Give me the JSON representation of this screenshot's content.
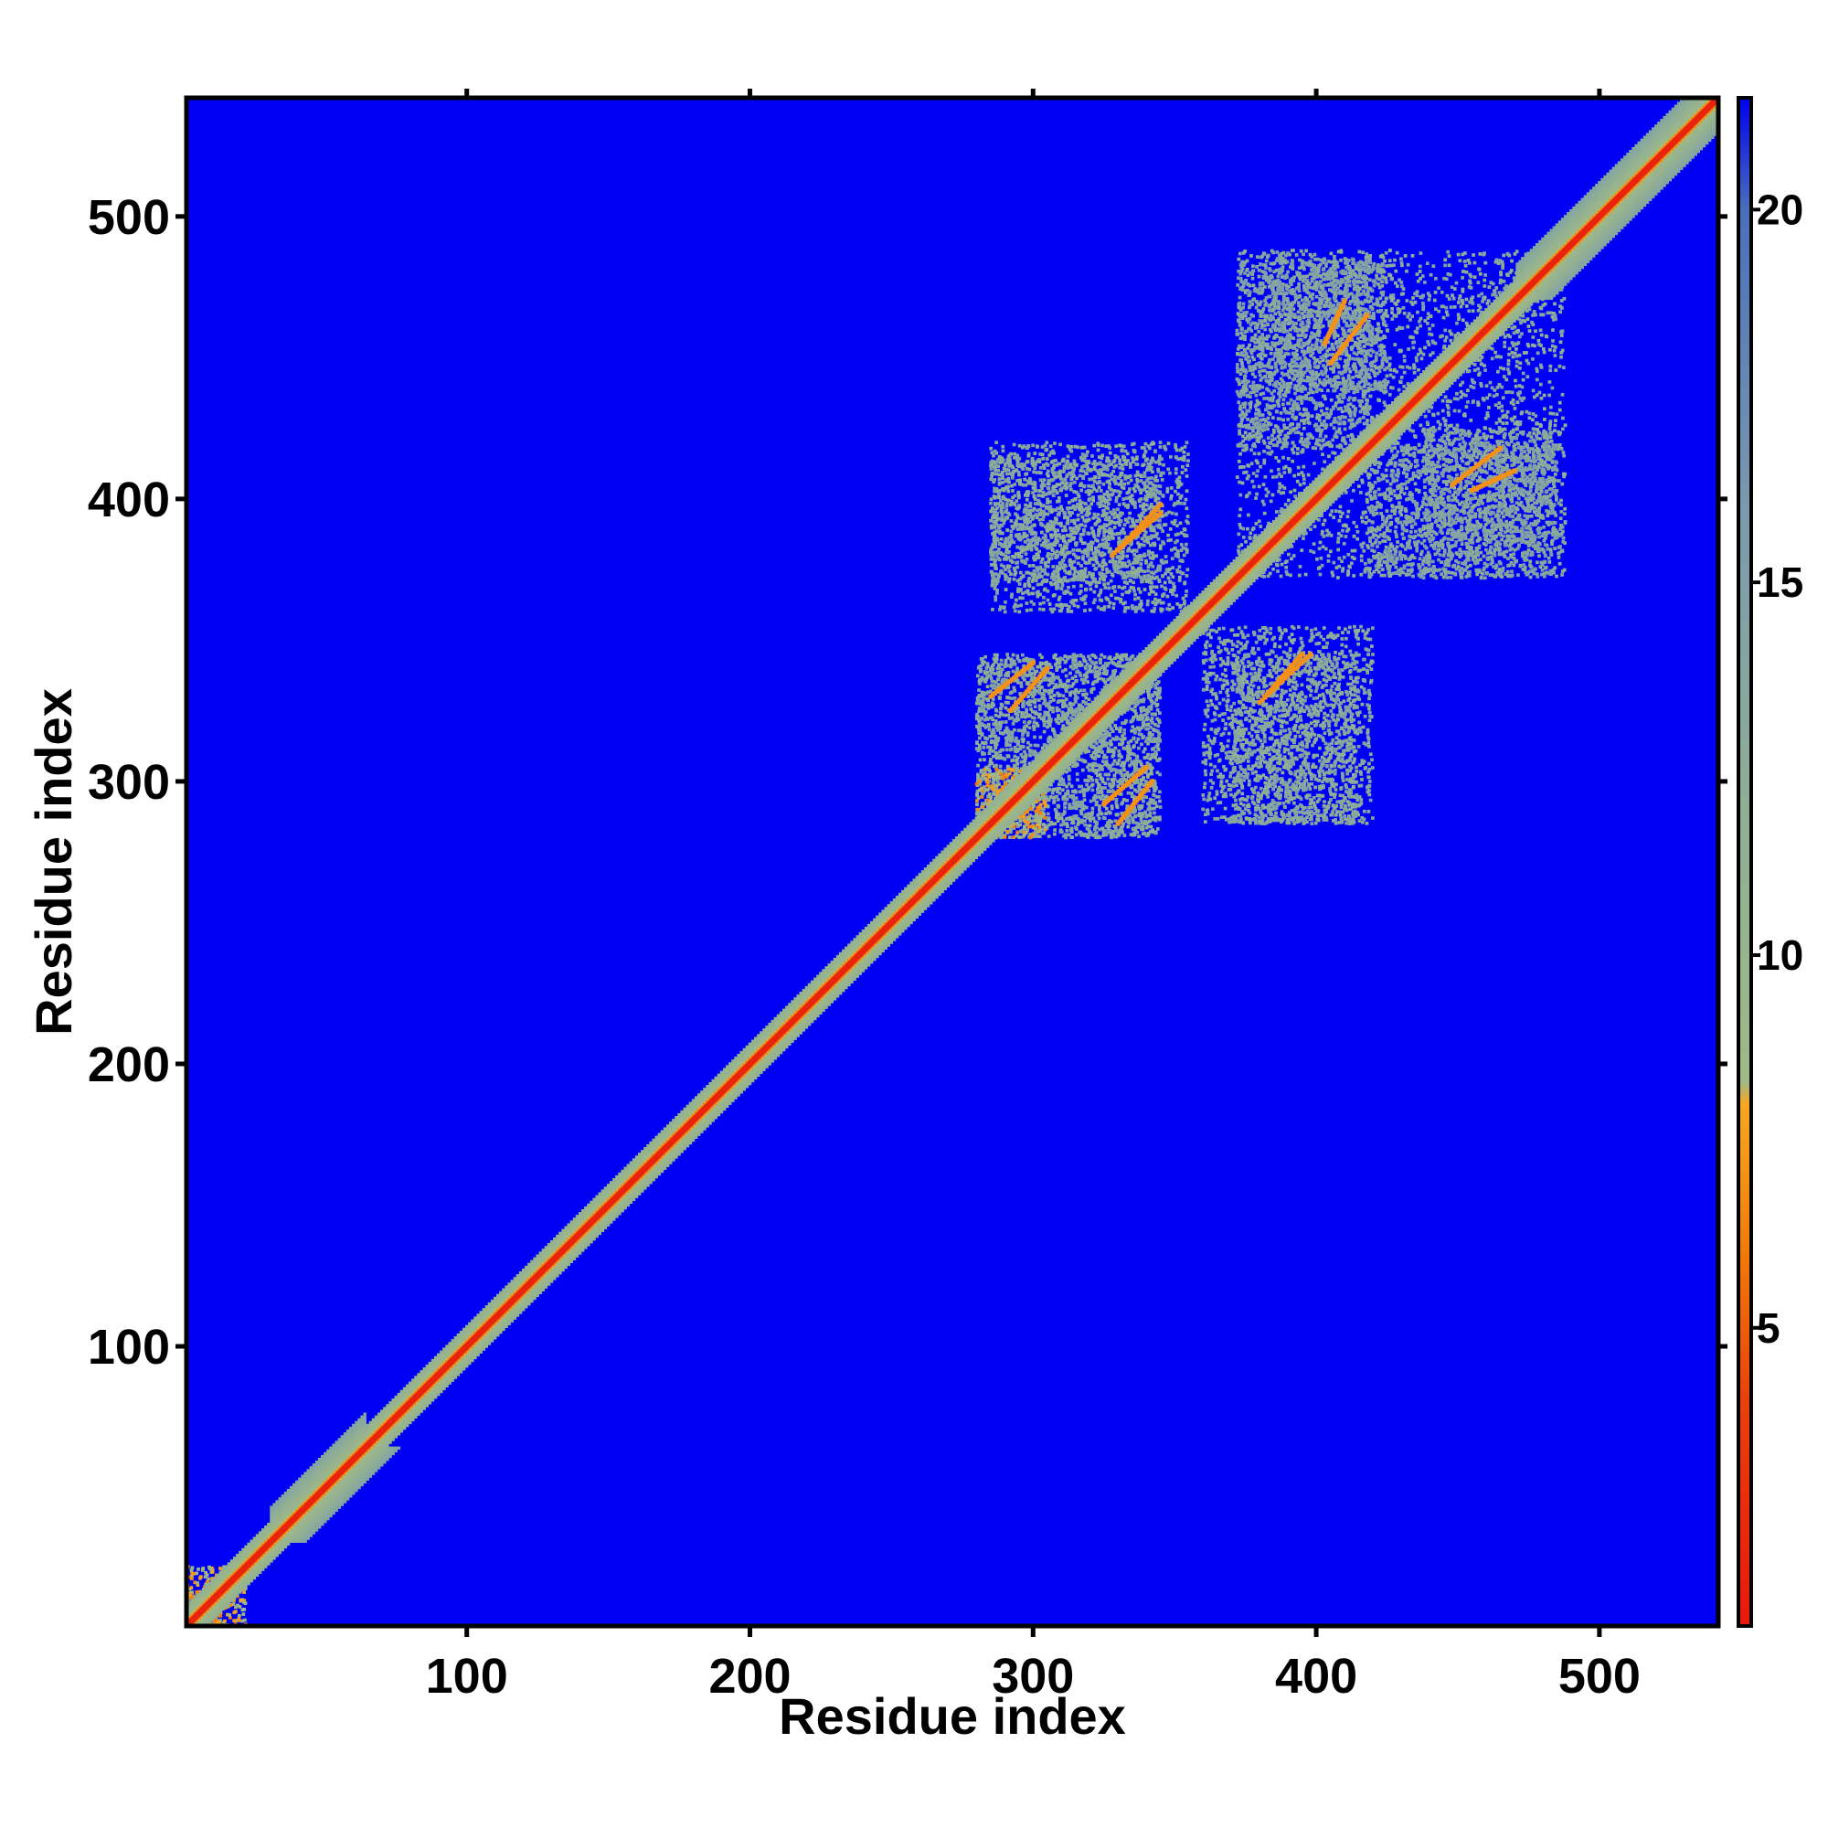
{
  "chart_data": {
    "type": "heatmap",
    "title": "",
    "xlabel": "Residue index",
    "ylabel": "Residue index",
    "xlim": [
      1,
      542
    ],
    "ylim": [
      1,
      542
    ],
    "x_ticks": [
      100,
      200,
      300,
      400,
      500
    ],
    "y_ticks": [
      100,
      200,
      300,
      400,
      500
    ],
    "x_tick_labels": [
      "100",
      "200",
      "300",
      "400",
      "500"
    ],
    "y_tick_labels": [
      "100",
      "200",
      "300",
      "400",
      "500"
    ],
    "colorbar": {
      "range": [
        1,
        21.5
      ],
      "ticks": [
        5,
        10,
        15,
        20
      ],
      "tick_labels": [
        "5",
        "10",
        "15",
        "20"
      ],
      "colors": [
        {
          "value": 1,
          "color": "#e8180c"
        },
        {
          "value": 4,
          "color": "#e8400c"
        },
        {
          "value": 6,
          "color": "#f07a0a"
        },
        {
          "value": 8,
          "color": "#f5a623"
        },
        {
          "value": 8.3,
          "color": "#9fba86"
        },
        {
          "value": 12,
          "color": "#8fae96"
        },
        {
          "value": 16,
          "color": "#7a9aae"
        },
        {
          "value": 20,
          "color": "#4a6fba"
        },
        {
          "value": 21.5,
          "color": "#0000ee"
        }
      ]
    },
    "background_value": 21.5,
    "background_color": "#0000f5",
    "diagonal": {
      "from": 1,
      "to": 542,
      "value": 2
    },
    "near_diagonal_band": {
      "width_residues": 7,
      "value": 11
    },
    "contact_regions": [
      {
        "x": [
          280,
          345
        ],
        "y": [
          280,
          345
        ],
        "value": 13
      },
      {
        "x": [
          285,
          345
        ],
        "y": [
          370,
          415
        ],
        "value": 13
      },
      {
        "x": [
          360,
          420
        ],
        "y": [
          285,
          355
        ],
        "value": 13
      },
      {
        "x": [
          372,
          488
        ],
        "y": [
          372,
          488
        ],
        "value": 13
      },
      {
        "x": [
          372,
          420
        ],
        "y": [
          418,
          485
        ],
        "value": 14
      },
      {
        "x": [
          438,
          485
        ],
        "y": [
          380,
          425
        ],
        "value": 14
      },
      {
        "x": [
          280,
          305
        ],
        "y": [
          283,
          303
        ],
        "value": 8
      },
      {
        "x": 8,
        "y": 8,
        "value": 8
      }
    ],
    "secondary_contact_lines": [
      {
        "x": [
          330,
          345
        ],
        "y": [
          382,
          395
        ],
        "value": 7
      },
      {
        "x": [
          285,
          300
        ],
        "y": [
          330,
          342
        ],
        "value": 7
      },
      {
        "x": [
          380,
          398
        ],
        "y": [
          328,
          345
        ],
        "value": 7
      },
      {
        "x": [
          398,
          410
        ],
        "y": [
          395,
          408
        ],
        "value": 7
      },
      {
        "x": [
          403,
          410
        ],
        "y": [
          455,
          470
        ],
        "value": 7
      },
      {
        "x": [
          448,
          465
        ],
        "y": [
          405,
          418
        ],
        "value": 7
      },
      {
        "x": [
          325,
          340
        ],
        "y": [
          292,
          305
        ],
        "value": 7
      }
    ],
    "grid": false,
    "legend": "none"
  }
}
